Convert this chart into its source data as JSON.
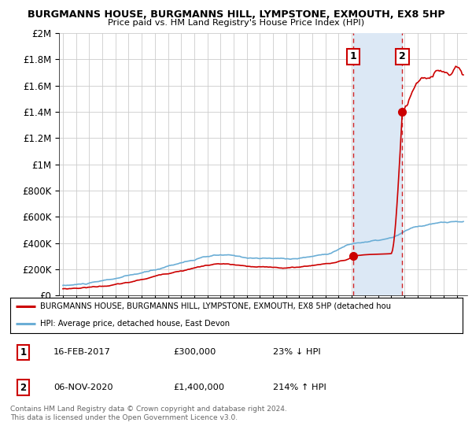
{
  "title_line1": "BURGMANNS HOUSE, BURGMANNS HILL, LYMPSTONE, EXMOUTH, EX8 5HP",
  "title_line2": "Price paid vs. HM Land Registry's House Price Index (HPI)",
  "legend_red": "BURGMANNS HOUSE, BURGMANNS HILL, LYMPSTONE, EXMOUTH, EX8 5HP (detached hou",
  "legend_blue": "HPI: Average price, detached house, East Devon",
  "footer": "Contains HM Land Registry data © Crown copyright and database right 2024.\nThis data is licensed under the Open Government Licence v3.0.",
  "table": [
    {
      "num": "1",
      "date": "16-FEB-2017",
      "price": "£300,000",
      "pct": "23% ↓ HPI"
    },
    {
      "num": "2",
      "date": "06-NOV-2020",
      "price": "£1,400,000",
      "pct": "214% ↑ HPI"
    }
  ],
  "sale1_year": 2017.12,
  "sale1_price": 300000,
  "sale2_year": 2020.85,
  "sale2_price": 1400000,
  "red_color": "#cc0000",
  "blue_color": "#6baed6",
  "shade_color": "#dce8f5",
  "grid_color": "#cccccc",
  "bg_color": "#ffffff",
  "ylim_max": 2000000,
  "xlim_min": 1994.7,
  "xlim_max": 2025.8,
  "yticks": [
    0,
    200000,
    400000,
    600000,
    800000,
    1000000,
    1200000,
    1400000,
    1600000,
    1800000,
    2000000
  ],
  "ytick_labels": [
    "£0",
    "£200K",
    "£400K",
    "£600K",
    "£800K",
    "£1M",
    "£1.2M",
    "£1.4M",
    "£1.6M",
    "£1.8M",
    "£2M"
  ],
  "ann1_y": 1820000,
  "ann2_y": 1820000
}
